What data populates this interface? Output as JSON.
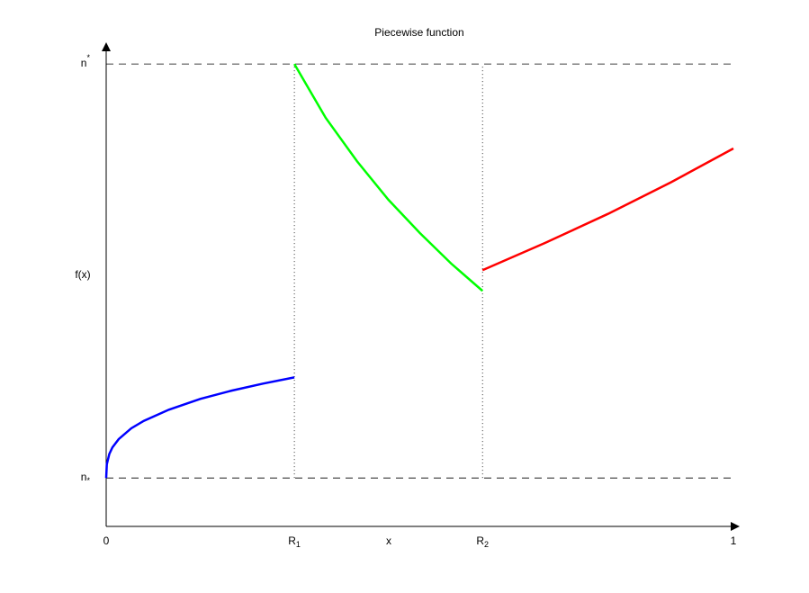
{
  "chart_data": {
    "type": "line",
    "title": "Piecewise function",
    "x_label": "x",
    "y_label": "f(x)",
    "xlim": [
      0,
      1
    ],
    "ylim": [
      -0.117,
      1.046
    ],
    "xticks": [
      0,
      {
        "value": 0.3,
        "label": "R",
        "subscript": "1"
      },
      {
        "value": 0.6,
        "label": "R",
        "subscript": "2"
      },
      1
    ],
    "yticks": [
      {
        "value": 0,
        "label": "n",
        "subscript": "*"
      },
      {
        "value": 1,
        "label": "n",
        "superscript": "*"
      }
    ],
    "ygrid_style": "dashed",
    "xgrid_style": "dotted",
    "series": [
      {
        "color": "#0000ff",
        "x": [
          0,
          0.001,
          0.005,
          0.01,
          0.02,
          0.04,
          0.06,
          0.1,
          0.15,
          0.2,
          0.25,
          0.3
        ],
        "values": [
          0,
          0.033,
          0.058,
          0.074,
          0.094,
          0.12,
          0.138,
          0.165,
          0.191,
          0.211,
          0.228,
          0.243
        ]
      },
      {
        "color": "#00ff00",
        "x": [
          0.3,
          0.35,
          0.4,
          0.45,
          0.5,
          0.55,
          0.6
        ],
        "values": [
          1,
          0.87,
          0.765,
          0.672,
          0.592,
          0.518,
          0.452
        ]
      },
      {
        "color": "#ff0000",
        "x": [
          0.6,
          0.7,
          0.8,
          0.9,
          1
        ],
        "values": [
          0.502,
          0.568,
          0.638,
          0.714,
          0.796
        ]
      }
    ]
  }
}
